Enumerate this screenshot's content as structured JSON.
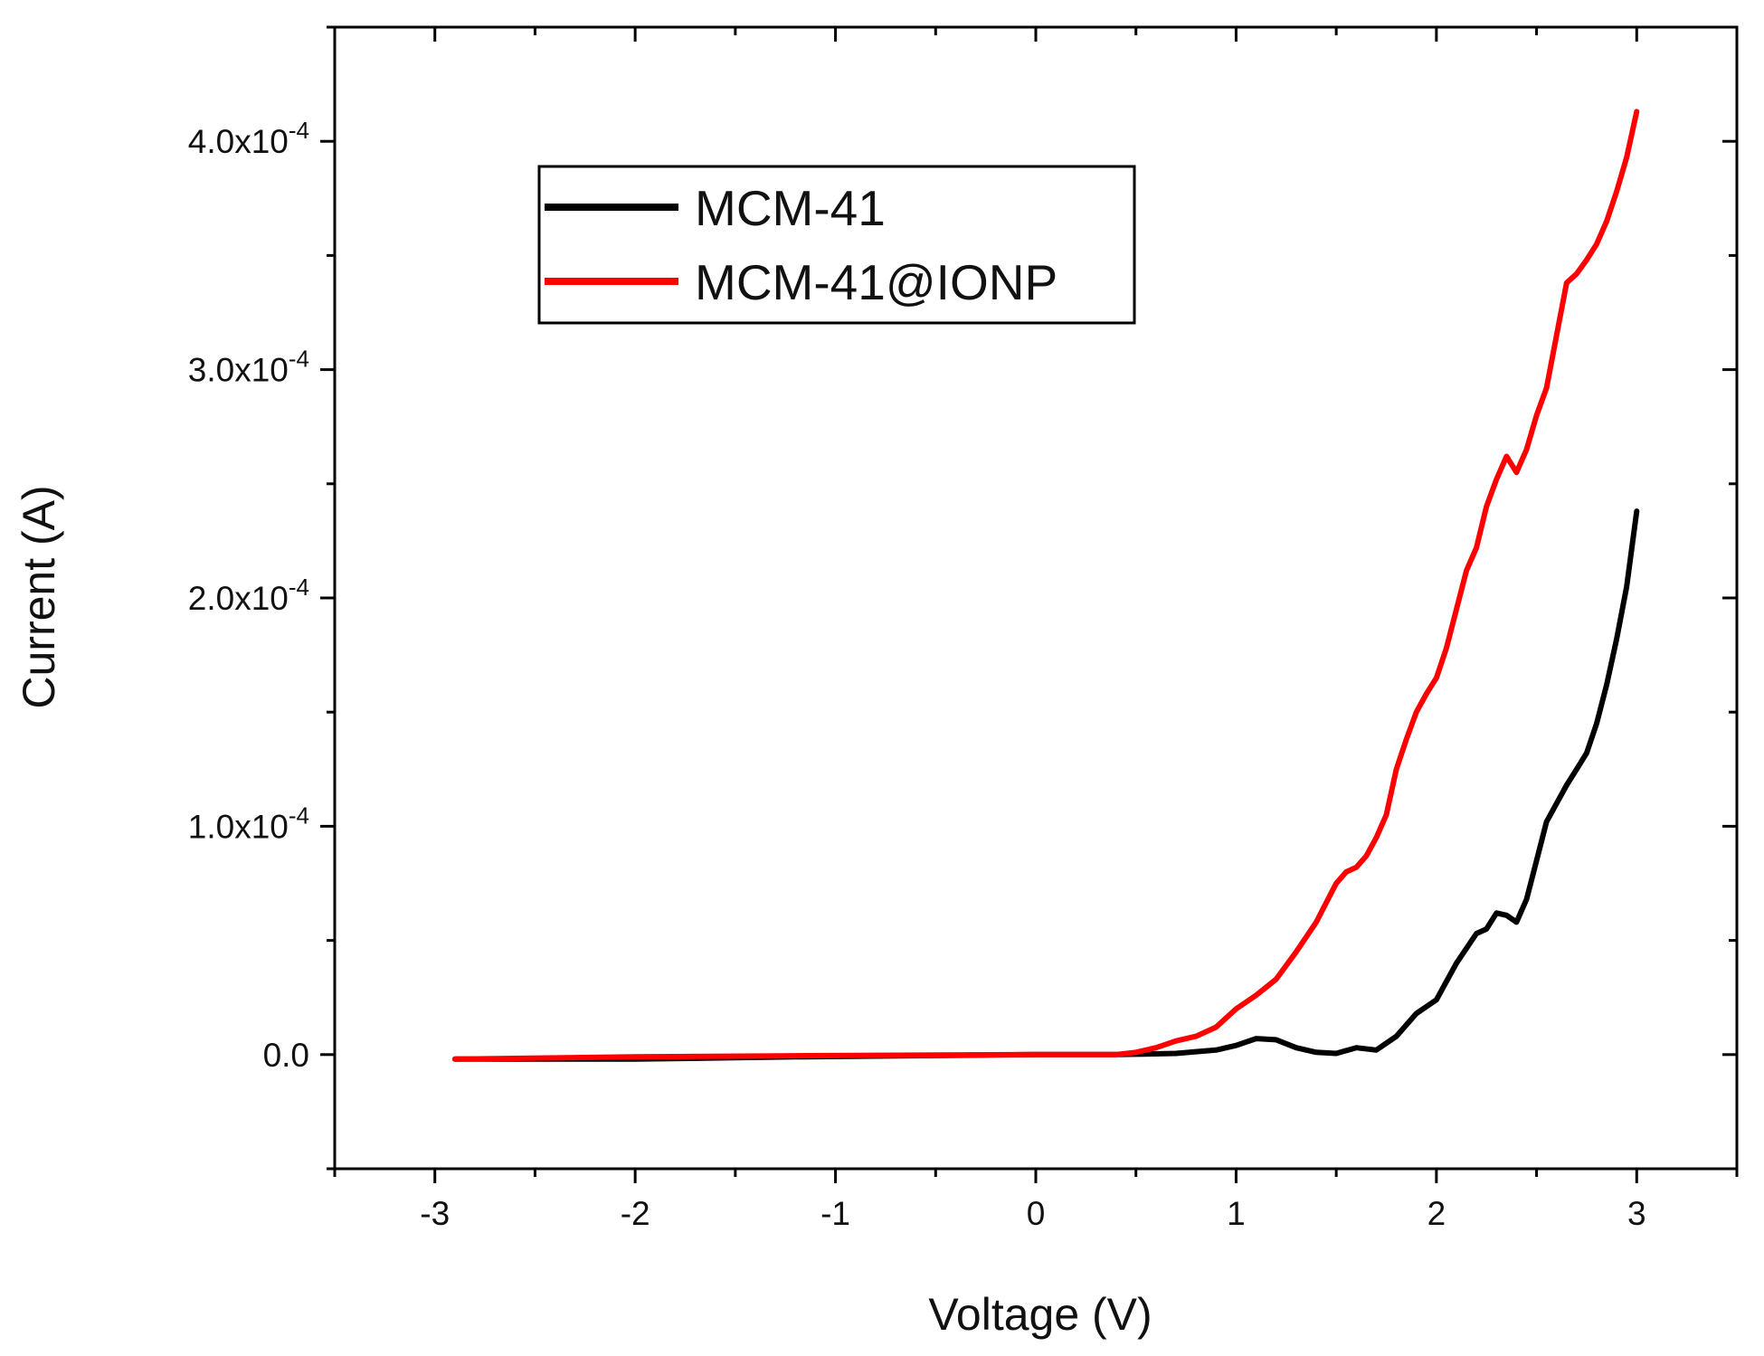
{
  "chart_data": {
    "type": "line",
    "title": "",
    "xlabel": "Voltage (V)",
    "ylabel": "Current (A)",
    "xlim": [
      -3.5,
      3.5
    ],
    "ylim": [
      -5e-05,
      0.00045
    ],
    "x_ticks": [
      {
        "value": -3,
        "label": "-3"
      },
      {
        "value": -2,
        "label": "-2"
      },
      {
        "value": -1,
        "label": "-1"
      },
      {
        "value": 0,
        "label": "0"
      },
      {
        "value": 1,
        "label": "1"
      },
      {
        "value": 2,
        "label": "2"
      },
      {
        "value": 3,
        "label": "3"
      }
    ],
    "y_ticks": [
      {
        "value": 0,
        "mantissa": "0.0",
        "exponent": ""
      },
      {
        "value": 0.0001,
        "mantissa": "1.0x10",
        "exponent": "-4"
      },
      {
        "value": 0.0002,
        "mantissa": "2.0x10",
        "exponent": "-4"
      },
      {
        "value": 0.0003,
        "mantissa": "3.0x10",
        "exponent": "-4"
      },
      {
        "value": 0.0004,
        "mantissa": "4.0x10",
        "exponent": "-4"
      }
    ],
    "grid": false,
    "legend_position": "top-left",
    "series": [
      {
        "name": "MCM-41",
        "color": "#000000",
        "x": [
          -2.9,
          -2.0,
          -1.2,
          0.0,
          0.4,
          0.7,
          0.9,
          1.0,
          1.1,
          1.2,
          1.3,
          1.4,
          1.5,
          1.6,
          1.7,
          1.8,
          1.9,
          1.95,
          2.0,
          2.1,
          2.2,
          2.25,
          2.3,
          2.35,
          2.4,
          2.45,
          2.5,
          2.55,
          2.6,
          2.65,
          2.7,
          2.75,
          2.8,
          2.85,
          2.9,
          2.95,
          3.0
        ],
        "values": [
          -2e-06,
          -2e-06,
          -1e-06,
          0.0,
          0.0,
          5e-07,
          2e-06,
          4e-06,
          7e-06,
          6.5e-06,
          3e-06,
          1e-06,
          5e-07,
          3e-06,
          2e-06,
          8e-06,
          1.8e-05,
          2.1e-05,
          2.4e-05,
          4e-05,
          5.3e-05,
          5.5e-05,
          6.2e-05,
          6.1e-05,
          5.8e-05,
          6.8e-05,
          8.5e-05,
          0.000102,
          0.00011,
          0.000118,
          0.000125,
          0.000132,
          0.000145,
          0.000162,
          0.000182,
          0.000205,
          0.000238
        ]
      },
      {
        "name": "MCM-41@IONP",
        "color": "#ff0000",
        "x": [
          -2.9,
          -2.0,
          -1.2,
          0.0,
          0.4,
          0.5,
          0.6,
          0.7,
          0.8,
          0.9,
          1.0,
          1.1,
          1.2,
          1.3,
          1.4,
          1.5,
          1.55,
          1.6,
          1.65,
          1.7,
          1.75,
          1.8,
          1.85,
          1.9,
          1.95,
          2.0,
          2.05,
          2.1,
          2.15,
          2.2,
          2.25,
          2.3,
          2.35,
          2.4,
          2.45,
          2.5,
          2.55,
          2.6,
          2.65,
          2.7,
          2.75,
          2.8,
          2.85,
          2.9,
          2.95,
          3.0
        ],
        "values": [
          -2e-06,
          -1e-06,
          -5e-07,
          0.0,
          0.0,
          1e-06,
          3e-06,
          6e-06,
          8e-06,
          1.2e-05,
          2e-05,
          2.6e-05,
          3.3e-05,
          4.5e-05,
          5.8e-05,
          7.5e-05,
          8e-05,
          8.2e-05,
          8.7e-05,
          9.5e-05,
          0.000105,
          0.000125,
          0.000138,
          0.00015,
          0.000158,
          0.000165,
          0.000178,
          0.000195,
          0.000212,
          0.000222,
          0.00024,
          0.000252,
          0.000262,
          0.000255,
          0.000265,
          0.00028,
          0.000292,
          0.000315,
          0.000338,
          0.000342,
          0.000348,
          0.000355,
          0.000365,
          0.000378,
          0.000393,
          0.000413
        ]
      }
    ]
  }
}
